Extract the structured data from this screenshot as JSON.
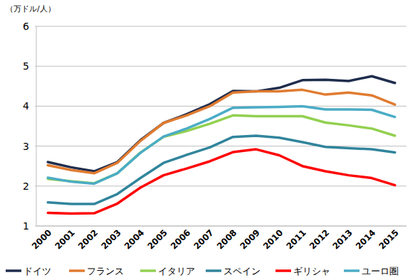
{
  "chart_data": {
    "type": "line",
    "y_label": "（万ドル/人）",
    "categories": [
      "2000",
      "2001",
      "2002",
      "2003",
      "2004",
      "2005",
      "2006",
      "2007",
      "2008",
      "2009",
      "2010",
      "2011",
      "2012",
      "2013",
      "2014",
      "2015"
    ],
    "ylim": [
      1,
      6
    ],
    "yticks": [
      1,
      2,
      3,
      4,
      5,
      6
    ],
    "grid": true,
    "legend": "bottom",
    "series": [
      {
        "name": "ドイツ",
        "color": "#1f2d4d",
        "values": [
          2.6,
          2.47,
          2.37,
          2.6,
          3.15,
          3.58,
          3.8,
          4.05,
          4.38,
          4.37,
          4.46,
          4.65,
          4.66,
          4.63,
          4.75,
          4.58
        ]
      },
      {
        "name": "フランス",
        "color": "#e07b30",
        "values": [
          2.52,
          2.4,
          2.32,
          2.58,
          3.13,
          3.58,
          3.77,
          4.0,
          4.34,
          4.37,
          4.37,
          4.41,
          4.29,
          4.34,
          4.27,
          4.04
        ]
      },
      {
        "name": "イタリア",
        "color": "#92d050",
        "values": [
          2.18,
          2.12,
          2.07,
          2.32,
          2.84,
          3.23,
          3.38,
          3.56,
          3.77,
          3.75,
          3.75,
          3.75,
          3.59,
          3.52,
          3.44,
          3.26
        ]
      },
      {
        "name": "スペイン",
        "color": "#31859c",
        "values": [
          1.59,
          1.55,
          1.55,
          1.8,
          2.2,
          2.58,
          2.78,
          2.97,
          3.23,
          3.26,
          3.21,
          3.1,
          2.98,
          2.95,
          2.92,
          2.84
        ]
      },
      {
        "name": "ギリシャ",
        "color": "#ff0000",
        "values": [
          1.33,
          1.31,
          1.32,
          1.56,
          1.96,
          2.27,
          2.44,
          2.62,
          2.85,
          2.92,
          2.77,
          2.5,
          2.37,
          2.27,
          2.2,
          2.02
        ]
      },
      {
        "name": "ユーロ圏",
        "color": "#4bacc6",
        "values": [
          2.21,
          2.11,
          2.06,
          2.32,
          2.83,
          3.24,
          3.44,
          3.68,
          3.96,
          3.97,
          3.98,
          4.0,
          3.92,
          3.92,
          3.91,
          3.73
        ]
      }
    ]
  }
}
